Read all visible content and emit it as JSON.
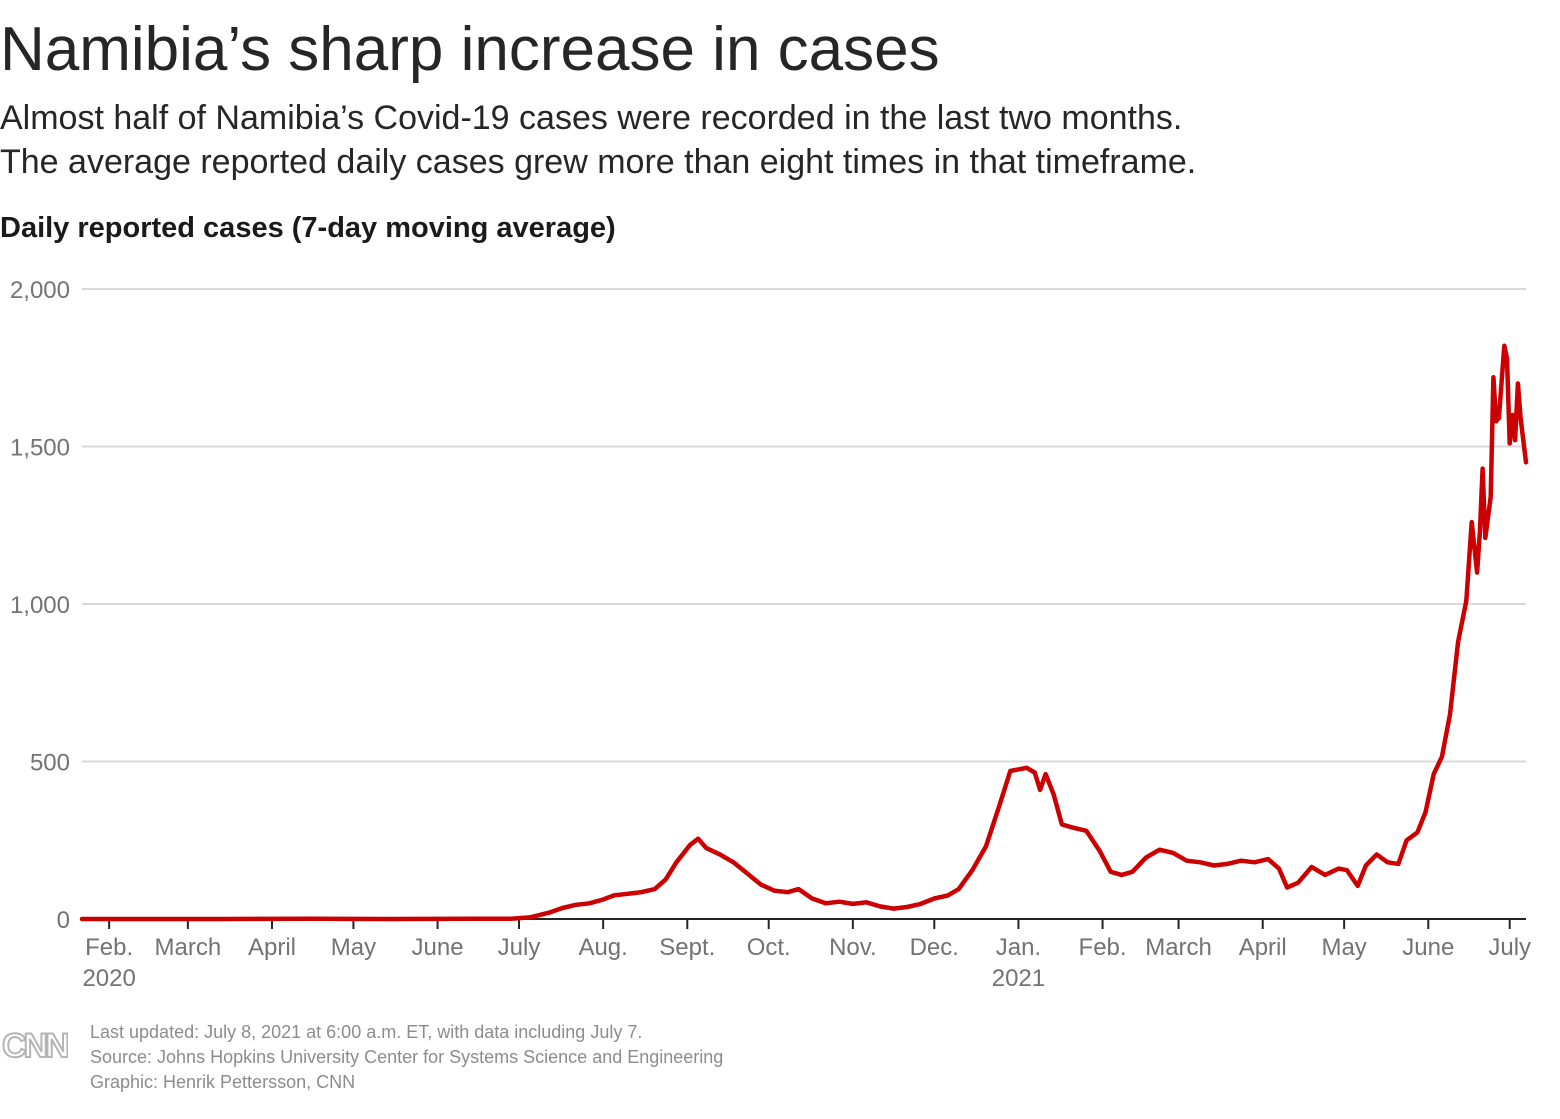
{
  "header": {
    "title": "Namibia’s sharp increase in cases",
    "subtitle_line1": "Almost half of Namibia’s Covid-19 cases were recorded in the last two months.",
    "subtitle_line2": "The average reported daily cases grew more than eight times in that timeframe."
  },
  "chart_data": {
    "type": "line",
    "title": "Daily reported cases (7-day moving average)",
    "ylim": [
      0,
      2000
    ],
    "yticks": [
      0,
      500,
      1000,
      1500,
      2000
    ],
    "ytick_labels": [
      "0",
      "500",
      "1,000",
      "1,500",
      "2,000"
    ],
    "xlim": [
      "2020-01-22",
      "2021-07-07"
    ],
    "xticks": [
      {
        "date": "2020-02-01",
        "label": "Feb.",
        "year": "2020"
      },
      {
        "date": "2020-03-01",
        "label": "March"
      },
      {
        "date": "2020-04-01",
        "label": "April"
      },
      {
        "date": "2020-05-01",
        "label": "May"
      },
      {
        "date": "2020-06-01",
        "label": "June"
      },
      {
        "date": "2020-07-01",
        "label": "July"
      },
      {
        "date": "2020-08-01",
        "label": "Aug."
      },
      {
        "date": "2020-09-01",
        "label": "Sept."
      },
      {
        "date": "2020-10-01",
        "label": "Oct."
      },
      {
        "date": "2020-11-01",
        "label": "Nov."
      },
      {
        "date": "2020-12-01",
        "label": "Dec."
      },
      {
        "date": "2021-01-01",
        "label": "Jan.",
        "year": "2021"
      },
      {
        "date": "2021-02-01",
        "label": "Feb."
      },
      {
        "date": "2021-03-01",
        "label": "March"
      },
      {
        "date": "2021-04-01",
        "label": "April"
      },
      {
        "date": "2021-05-01",
        "label": "May"
      },
      {
        "date": "2021-06-01",
        "label": "June"
      },
      {
        "date": "2021-07-01",
        "label": "July"
      }
    ],
    "grid": true,
    "line_color": "#cc0000",
    "grid_color": "#d9d9d9",
    "series": [
      {
        "points": [
          [
            "2020-01-22",
            0
          ],
          [
            "2020-03-14",
            0
          ],
          [
            "2020-04-15",
            1
          ],
          [
            "2020-05-15",
            0
          ],
          [
            "2020-06-15",
            1
          ],
          [
            "2020-06-28",
            1
          ],
          [
            "2020-07-05",
            5
          ],
          [
            "2020-07-12",
            20
          ],
          [
            "2020-07-17",
            35
          ],
          [
            "2020-07-22",
            45
          ],
          [
            "2020-07-27",
            50
          ],
          [
            "2020-08-01",
            62
          ],
          [
            "2020-08-05",
            75
          ],
          [
            "2020-08-10",
            80
          ],
          [
            "2020-08-15",
            85
          ],
          [
            "2020-08-20",
            95
          ],
          [
            "2020-08-24",
            125
          ],
          [
            "2020-08-28",
            180
          ],
          [
            "2020-09-02",
            235
          ],
          [
            "2020-09-05",
            255
          ],
          [
            "2020-09-08",
            225
          ],
          [
            "2020-09-13",
            205
          ],
          [
            "2020-09-18",
            180
          ],
          [
            "2020-09-23",
            145
          ],
          [
            "2020-09-28",
            110
          ],
          [
            "2020-10-03",
            90
          ],
          [
            "2020-10-08",
            85
          ],
          [
            "2020-10-12",
            95
          ],
          [
            "2020-10-17",
            65
          ],
          [
            "2020-10-22",
            50
          ],
          [
            "2020-10-27",
            55
          ],
          [
            "2020-11-01",
            48
          ],
          [
            "2020-11-06",
            53
          ],
          [
            "2020-11-11",
            40
          ],
          [
            "2020-11-16",
            33
          ],
          [
            "2020-11-21",
            38
          ],
          [
            "2020-11-26",
            48
          ],
          [
            "2020-12-01",
            65
          ],
          [
            "2020-12-06",
            75
          ],
          [
            "2020-12-10",
            95
          ],
          [
            "2020-12-15",
            155
          ],
          [
            "2020-12-20",
            230
          ],
          [
            "2020-12-25",
            360
          ],
          [
            "2020-12-29",
            470
          ],
          [
            "2021-01-01",
            475
          ],
          [
            "2021-01-04",
            480
          ],
          [
            "2021-01-07",
            465
          ],
          [
            "2021-01-09",
            410
          ],
          [
            "2021-01-11",
            460
          ],
          [
            "2021-01-14",
            395
          ],
          [
            "2021-01-17",
            300
          ],
          [
            "2021-01-21",
            290
          ],
          [
            "2021-01-26",
            280
          ],
          [
            "2021-01-31",
            215
          ],
          [
            "2021-02-04",
            150
          ],
          [
            "2021-02-08",
            140
          ],
          [
            "2021-02-12",
            150
          ],
          [
            "2021-02-17",
            195
          ],
          [
            "2021-02-22",
            220
          ],
          [
            "2021-02-27",
            210
          ],
          [
            "2021-03-04",
            185
          ],
          [
            "2021-03-09",
            180
          ],
          [
            "2021-03-14",
            170
          ],
          [
            "2021-03-19",
            175
          ],
          [
            "2021-03-24",
            185
          ],
          [
            "2021-03-29",
            180
          ],
          [
            "2021-04-03",
            190
          ],
          [
            "2021-04-07",
            160
          ],
          [
            "2021-04-10",
            100
          ],
          [
            "2021-04-14",
            115
          ],
          [
            "2021-04-19",
            165
          ],
          [
            "2021-04-24",
            140
          ],
          [
            "2021-04-29",
            160
          ],
          [
            "2021-05-02",
            155
          ],
          [
            "2021-05-06",
            105
          ],
          [
            "2021-05-09",
            170
          ],
          [
            "2021-05-13",
            205
          ],
          [
            "2021-05-17",
            180
          ],
          [
            "2021-05-21",
            175
          ],
          [
            "2021-05-24",
            250
          ],
          [
            "2021-05-28",
            275
          ],
          [
            "2021-05-31",
            340
          ],
          [
            "2021-06-03",
            460
          ],
          [
            "2021-06-06",
            515
          ],
          [
            "2021-06-09",
            650
          ],
          [
            "2021-06-12",
            880
          ],
          [
            "2021-06-15",
            1010
          ],
          [
            "2021-06-17",
            1260
          ],
          [
            "2021-06-19",
            1100
          ],
          [
            "2021-06-20",
            1230
          ],
          [
            "2021-06-21",
            1430
          ],
          [
            "2021-06-22",
            1210
          ],
          [
            "2021-06-24",
            1340
          ],
          [
            "2021-06-25",
            1720
          ],
          [
            "2021-06-26",
            1580
          ],
          [
            "2021-06-27",
            1590
          ],
          [
            "2021-06-29",
            1820
          ],
          [
            "2021-06-30",
            1780
          ],
          [
            "2021-07-01",
            1510
          ],
          [
            "2021-07-02",
            1600
          ],
          [
            "2021-07-03",
            1520
          ],
          [
            "2021-07-04",
            1700
          ],
          [
            "2021-07-05",
            1590
          ],
          [
            "2021-07-07",
            1450
          ]
        ]
      }
    ]
  },
  "footer": {
    "logo_text": "CNN",
    "updated": "Last updated: July 8, 2021 at 6:00 a.m. ET, with data including July 7.",
    "source": "Source: Johns Hopkins University Center for Systems Science and Engineering",
    "graphic": "Graphic: Henrik Pettersson, CNN"
  }
}
